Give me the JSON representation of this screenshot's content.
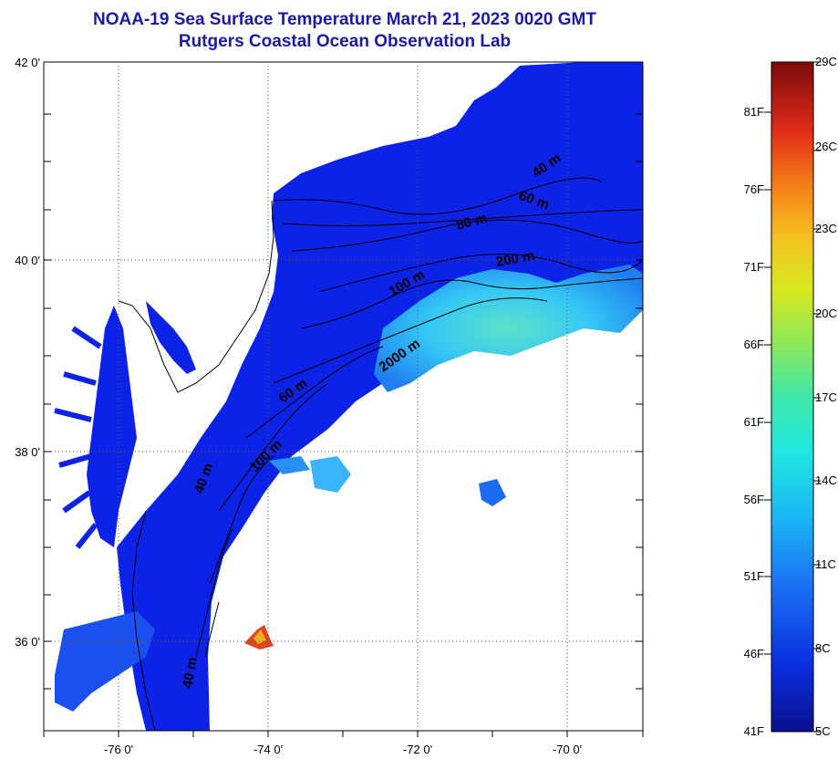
{
  "title": {
    "line1": "NOAA-19 Sea Surface Temperature March 21, 2023 0020 GMT",
    "line2": "Rutgers Coastal Ocean Observation Lab"
  },
  "map": {
    "lat_labels": [
      "42 0'",
      "40 0'",
      "38 0'",
      "36 0'"
    ],
    "lon_labels": [
      "-76 0'",
      "-74 0'",
      "-72 0'",
      "-70 0'"
    ],
    "contour_labels": [
      "40 m",
      "60 m",
      "80 m",
      "200 m",
      "100 m",
      "2000 m",
      "60 m",
      "100 m",
      "40 m",
      "40 m"
    ],
    "colors": {
      "land": "#ffffff",
      "cold_water": "#0a1fe0",
      "warm_patch": "#3ad8ff",
      "hot_spot": "#e0401a",
      "contour": "#000000"
    }
  },
  "colorbar": {
    "fahrenheit_labels": [
      "81F",
      "76F",
      "71F",
      "66F",
      "61F",
      "56F",
      "51F",
      "46F",
      "41F"
    ],
    "celsius_labels": [
      "29C",
      "26C",
      "23C",
      "20C",
      "17C",
      "14C",
      "11C",
      "8C",
      "5C"
    ]
  }
}
